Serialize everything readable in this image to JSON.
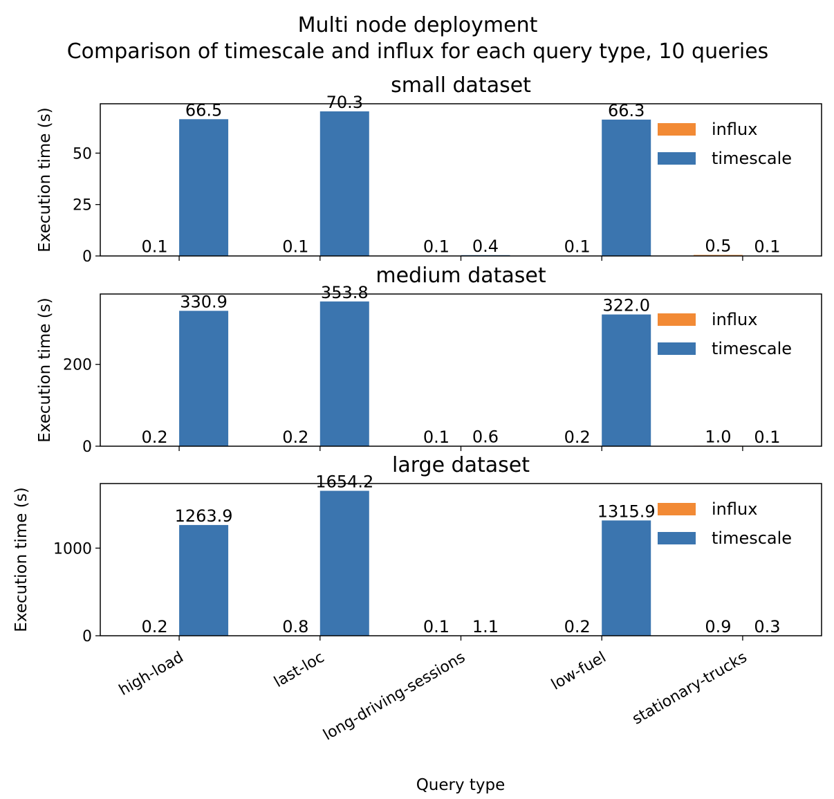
{
  "suptitle": "Multi node deployment",
  "suptitle_line2": "Comparison of timescale and influx for each query type, 10 queries",
  "xlabel": "Query type",
  "colors": {
    "influx": "#f28a35",
    "timescale": "#3b75af"
  },
  "chart_data": [
    {
      "type": "bar",
      "title": "small dataset",
      "ylabel": "Execution time (s)",
      "categories": [
        "high-load",
        "last-loc",
        "long-driving-sessions",
        "low-fuel",
        "stationary-trucks"
      ],
      "ylim": [
        0,
        74
      ],
      "yticks": [
        0,
        25,
        50
      ],
      "legend": {
        "placement": "upper right",
        "entries": [
          "influx",
          "timescale"
        ]
      },
      "series": [
        {
          "name": "influx",
          "values": [
            0.1,
            0.1,
            0.1,
            0.1,
            0.5
          ],
          "labels": [
            "0.1",
            "0.1",
            "0.1",
            "0.1",
            "0.5"
          ]
        },
        {
          "name": "timescale",
          "values": [
            66.5,
            70.3,
            0.4,
            66.3,
            0.1
          ],
          "labels": [
            "66.5",
            "70.3",
            "0.4",
            "66.3",
            "0.1"
          ]
        }
      ]
    },
    {
      "type": "bar",
      "title": "medium dataset",
      "ylabel": "Execution time (s)",
      "categories": [
        "high-load",
        "last-loc",
        "long-driving-sessions",
        "low-fuel",
        "stationary-trucks"
      ],
      "ylim": [
        0,
        372
      ],
      "yticks": [
        0,
        200
      ],
      "legend": {
        "placement": "upper right",
        "entries": [
          "influx",
          "timescale"
        ]
      },
      "series": [
        {
          "name": "influx",
          "values": [
            0.2,
            0.2,
            0.1,
            0.2,
            1.0
          ],
          "labels": [
            "0.2",
            "0.2",
            "0.1",
            "0.2",
            "1.0"
          ]
        },
        {
          "name": "timescale",
          "values": [
            330.9,
            353.8,
            0.6,
            322.0,
            0.1
          ],
          "labels": [
            "330.9",
            "353.8",
            "0.6",
            "322.0",
            "0.1"
          ]
        }
      ]
    },
    {
      "type": "bar",
      "title": "large dataset",
      "ylabel": "Execution time (s)",
      "categories": [
        "high-load",
        "last-loc",
        "long-driving-sessions",
        "low-fuel",
        "stationary-trucks"
      ],
      "ylim": [
        0,
        1737
      ],
      "yticks": [
        0,
        1000
      ],
      "legend": {
        "placement": "upper right",
        "entries": [
          "influx",
          "timescale"
        ]
      },
      "series": [
        {
          "name": "influx",
          "values": [
            0.2,
            0.8,
            0.1,
            0.2,
            0.9
          ],
          "labels": [
            "0.2",
            "0.8",
            "0.1",
            "0.2",
            "0.9"
          ]
        },
        {
          "name": "timescale",
          "values": [
            1263.9,
            1654.2,
            1.1,
            1315.9,
            0.3
          ],
          "labels": [
            "1263.9",
            "1654.2",
            "1.1",
            "1315.9",
            "0.3"
          ]
        }
      ]
    }
  ]
}
